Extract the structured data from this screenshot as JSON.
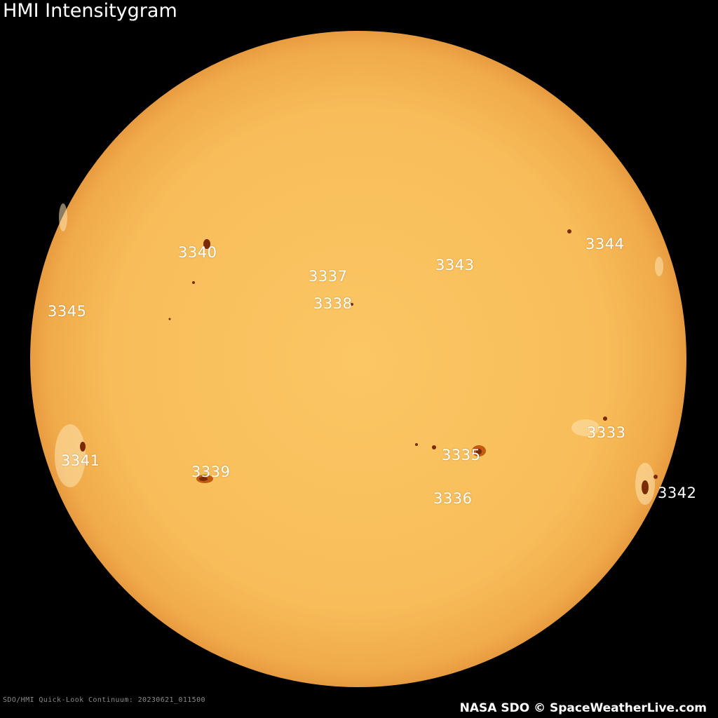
{
  "title": "HMI Intensitygram",
  "regions": [
    "3340",
    "3344",
    "3337",
    "3343",
    "3345",
    "3338",
    "3333",
    "3341",
    "3335",
    "3339",
    "3342",
    "3336"
  ],
  "footer": {
    "caption": "SDO/HMI Quick-Look Continuum: 20230621_011500",
    "credit": "NASA SDO © SpaceWeatherLive.com"
  },
  "colors": {
    "disk_center": "#fbc462",
    "disk_limb": "#eda547",
    "spot": "#7a2a05",
    "background": "#000000"
  }
}
